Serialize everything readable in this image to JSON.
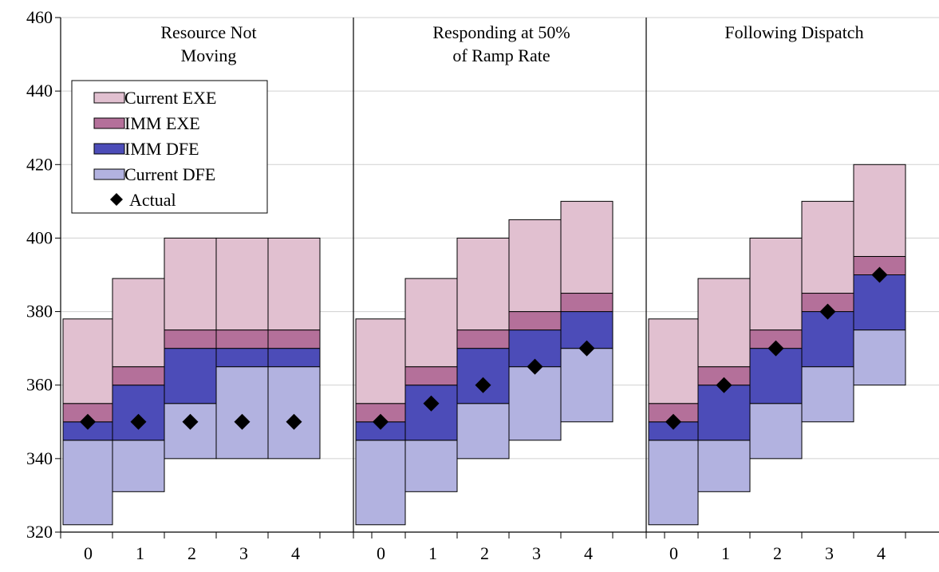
{
  "chart_data": {
    "type": "bar",
    "subtype": "stacked-range",
    "ylim": [
      320,
      460
    ],
    "y_ticks": [
      320,
      340,
      360,
      380,
      400,
      420,
      440,
      460
    ],
    "grid": "horizontal",
    "legend_placement": "top-left",
    "categories": [
      "0",
      "1",
      "2",
      "3",
      "4"
    ],
    "series": [
      {
        "name": "Current EXE",
        "color": "#e1c0d0"
      },
      {
        "name": "IMM EXE",
        "color": "#b4709a"
      },
      {
        "name": "IMM DFE",
        "color": "#4c4cb8"
      },
      {
        "name": "Current DFE",
        "color": "#b2b2e0"
      },
      {
        "name": "Actual",
        "color": "#000000",
        "marker": "diamond"
      }
    ],
    "panels": [
      {
        "title_lines": [
          "Resource Not",
          "Moving"
        ],
        "bars": [
          {
            "category": "0",
            "current_dfe": [
              322,
              345
            ],
            "imm_dfe": [
              345,
              350
            ],
            "imm_exe": [
              350,
              355
            ],
            "current_exe": [
              355,
              378
            ],
            "actual": 350
          },
          {
            "category": "1",
            "current_dfe": [
              331,
              345
            ],
            "imm_dfe": [
              345,
              360
            ],
            "imm_exe": [
              360,
              365
            ],
            "current_exe": [
              365,
              389
            ],
            "actual": 350
          },
          {
            "category": "2",
            "current_dfe": [
              340,
              355
            ],
            "imm_dfe": [
              355,
              370
            ],
            "imm_exe": [
              370,
              375
            ],
            "current_exe": [
              375,
              400
            ],
            "actual": 350
          },
          {
            "category": "3",
            "current_dfe": [
              340,
              365
            ],
            "imm_dfe": [
              365,
              370
            ],
            "imm_exe": [
              370,
              375
            ],
            "current_exe": [
              375,
              400
            ],
            "actual": 350
          },
          {
            "category": "4",
            "current_dfe": [
              340,
              365
            ],
            "imm_dfe": [
              365,
              370
            ],
            "imm_exe": [
              370,
              375
            ],
            "current_exe": [
              375,
              400
            ],
            "actual": 350
          }
        ]
      },
      {
        "title_lines": [
          "Responding at 50%",
          "of Ramp Rate"
        ],
        "bars": [
          {
            "category": "0",
            "current_dfe": [
              322,
              345
            ],
            "imm_dfe": [
              345,
              350
            ],
            "imm_exe": [
              350,
              355
            ],
            "current_exe": [
              355,
              378
            ],
            "actual": 350
          },
          {
            "category": "1",
            "current_dfe": [
              331,
              345
            ],
            "imm_dfe": [
              345,
              360
            ],
            "imm_exe": [
              360,
              365
            ],
            "current_exe": [
              365,
              389
            ],
            "actual": 355
          },
          {
            "category": "2",
            "current_dfe": [
              340,
              355
            ],
            "imm_dfe": [
              355,
              370
            ],
            "imm_exe": [
              370,
              375
            ],
            "current_exe": [
              375,
              400
            ],
            "actual": 360
          },
          {
            "category": "3",
            "current_dfe": [
              345,
              365
            ],
            "imm_dfe": [
              365,
              375
            ],
            "imm_exe": [
              375,
              380
            ],
            "current_exe": [
              380,
              405
            ],
            "actual": 365
          },
          {
            "category": "4",
            "current_dfe": [
              350,
              370
            ],
            "imm_dfe": [
              370,
              380
            ],
            "imm_exe": [
              380,
              385
            ],
            "current_exe": [
              385,
              410
            ],
            "actual": 370
          }
        ]
      },
      {
        "title_lines": [
          "Following Dispatch"
        ],
        "bars": [
          {
            "category": "0",
            "current_dfe": [
              322,
              345
            ],
            "imm_dfe": [
              345,
              350
            ],
            "imm_exe": [
              350,
              355
            ],
            "current_exe": [
              355,
              378
            ],
            "actual": 350
          },
          {
            "category": "1",
            "current_dfe": [
              331,
              345
            ],
            "imm_dfe": [
              345,
              360
            ],
            "imm_exe": [
              360,
              365
            ],
            "current_exe": [
              365,
              389
            ],
            "actual": 360
          },
          {
            "category": "2",
            "current_dfe": [
              340,
              355
            ],
            "imm_dfe": [
              355,
              370
            ],
            "imm_exe": [
              370,
              375
            ],
            "current_exe": [
              375,
              400
            ],
            "actual": 370
          },
          {
            "category": "3",
            "current_dfe": [
              350,
              365
            ],
            "imm_dfe": [
              365,
              380
            ],
            "imm_exe": [
              380,
              385
            ],
            "current_exe": [
              385,
              410
            ],
            "actual": 380
          },
          {
            "category": "4",
            "current_dfe": [
              360,
              375
            ],
            "imm_dfe": [
              375,
              390
            ],
            "imm_exe": [
              390,
              395
            ],
            "current_exe": [
              395,
              420
            ],
            "actual": 390
          }
        ]
      }
    ]
  }
}
